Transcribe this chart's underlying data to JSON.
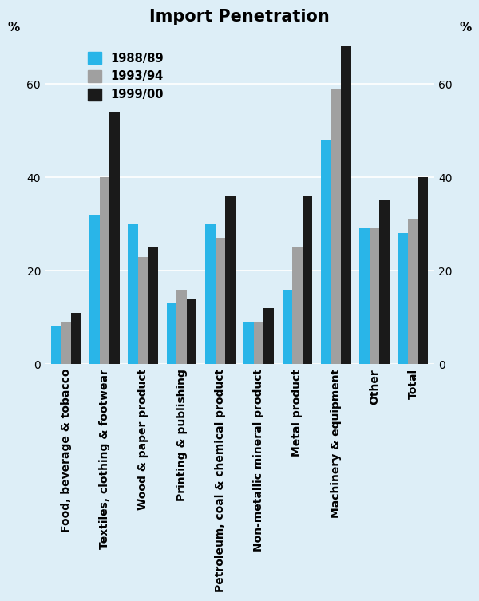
{
  "title": "Import Penetration",
  "categories": [
    "Food, beverage & tobacco",
    "Textiles, clothing & footwear",
    "Wood & paper product",
    "Printing & publishing",
    "Petroleum, coal & chemical product",
    "Non-metallic mineral product",
    "Metal product",
    "Machinery & equipment",
    "Other",
    "Total"
  ],
  "series": {
    "1988/89": [
      8,
      32,
      30,
      13,
      30,
      9,
      16,
      48,
      29,
      28
    ],
    "1993/94": [
      9,
      40,
      23,
      16,
      27,
      9,
      25,
      59,
      29,
      31
    ],
    "1999/00": [
      11,
      54,
      25,
      14,
      36,
      12,
      36,
      68,
      35,
      40
    ]
  },
  "series_colors": {
    "1988/89": "#29b5e8",
    "1993/94": "#a0a0a0",
    "1999/00": "#1a1a1a"
  },
  "ylabel": "%",
  "ylim": [
    0,
    70
  ],
  "yticks": [
    0,
    20,
    40,
    60
  ],
  "background_color": "#ddeef7",
  "title_fontsize": 15,
  "legend_fontsize": 10.5,
  "tick_fontsize": 10,
  "bar_width": 0.26,
  "figwidth": 6.0,
  "figheight": 7.53
}
